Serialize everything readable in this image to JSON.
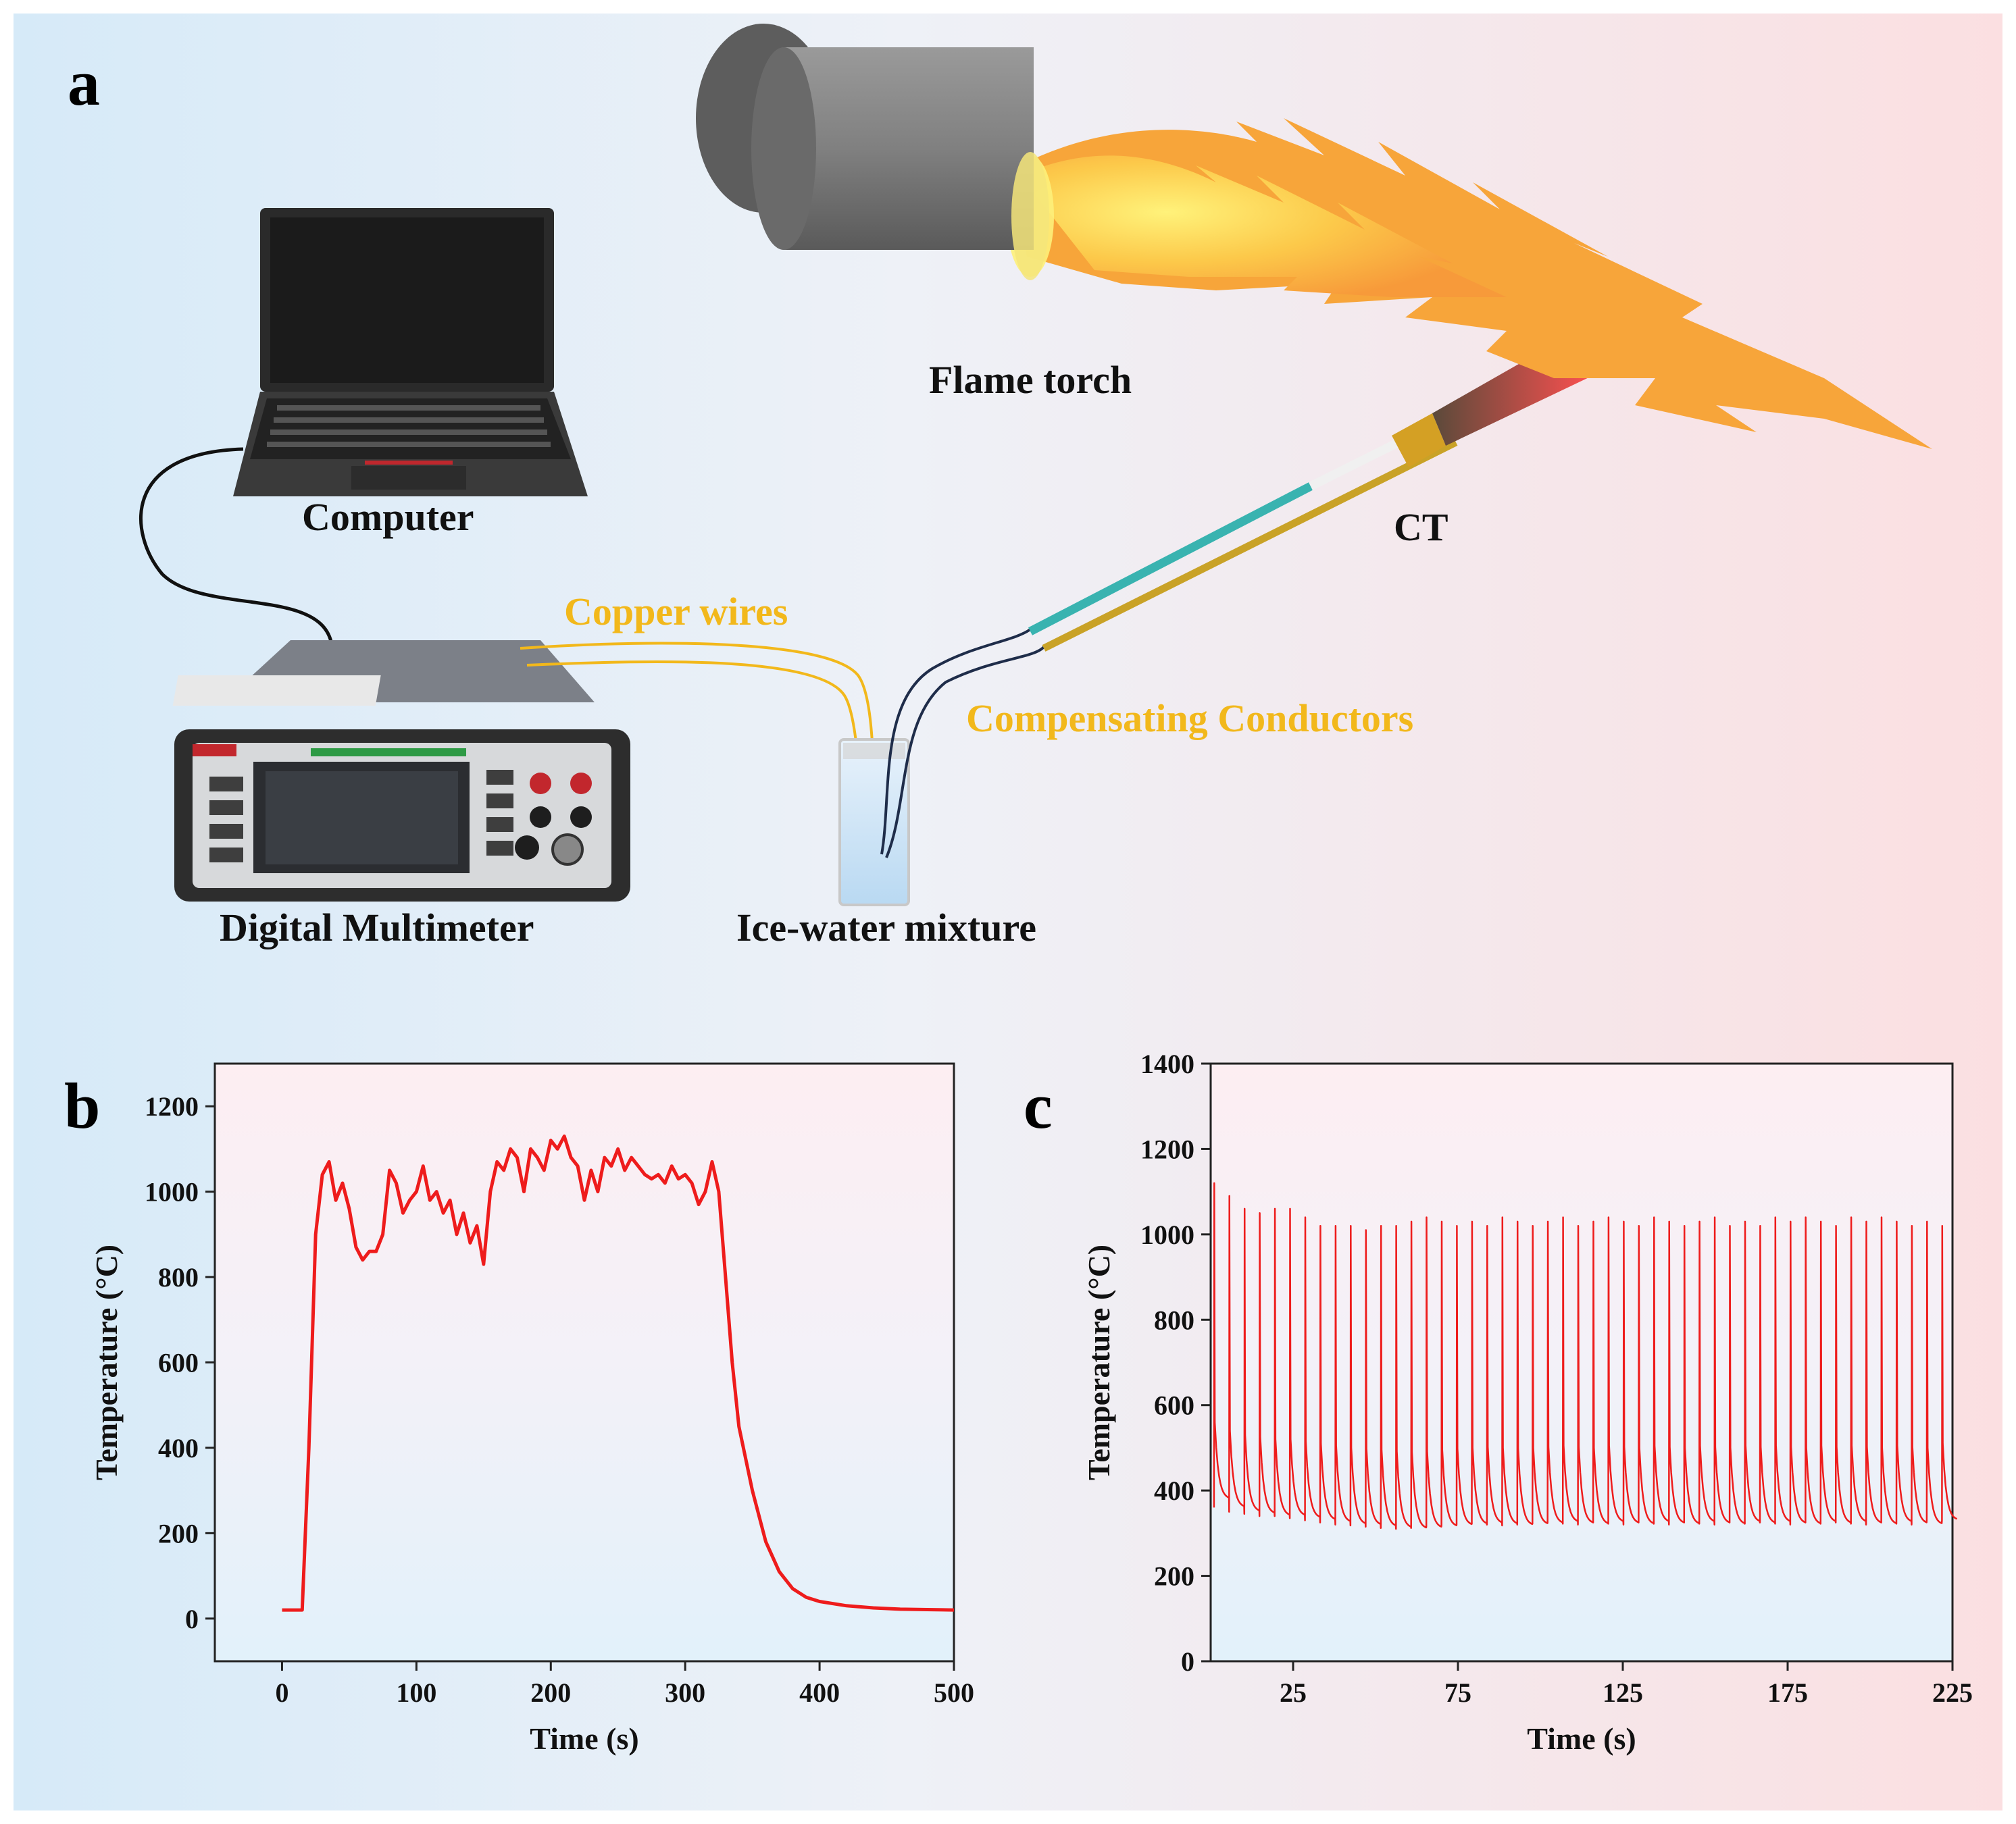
{
  "panels": {
    "a": "a",
    "b": "b",
    "c": "c"
  },
  "diagram": {
    "computer": "Computer",
    "flame_torch": "Flame torch",
    "ct": "CT",
    "copper_wires": "Copper wires",
    "compensating_conductors": "Compensating Conductors",
    "digital_multimeter": "Digital Multimeter",
    "ice_water": "Ice-water mixture"
  },
  "colors": {
    "flame": "#f7a53a",
    "copper_wire": "#f2b81b",
    "chart_line": "#ee1c1c",
    "bg_left": "#dcebf7",
    "bg_right": "#fbe3e5"
  },
  "chart_data": [
    {
      "panel": "b",
      "type": "line",
      "xlabel": "Time (s)",
      "ylabel": "Temperature (°C)",
      "xlim": [
        -50,
        500
      ],
      "ylim": [
        -100,
        1300
      ],
      "xticks": [
        0,
        100,
        200,
        300,
        400,
        500
      ],
      "yticks": [
        0,
        200,
        400,
        600,
        800,
        1000,
        1200
      ],
      "x": [
        0,
        15,
        20,
        25,
        30,
        35,
        40,
        45,
        50,
        55,
        60,
        65,
        70,
        75,
        80,
        85,
        90,
        95,
        100,
        105,
        110,
        115,
        120,
        125,
        130,
        135,
        140,
        145,
        150,
        155,
        160,
        165,
        170,
        175,
        180,
        185,
        190,
        195,
        200,
        205,
        210,
        215,
        220,
        225,
        230,
        235,
        240,
        245,
        250,
        255,
        260,
        265,
        270,
        275,
        280,
        285,
        290,
        295,
        300,
        305,
        310,
        315,
        320,
        325,
        330,
        335,
        340,
        350,
        360,
        370,
        380,
        390,
        400,
        420,
        440,
        460,
        480,
        500
      ],
      "y": [
        20,
        20,
        400,
        900,
        1040,
        1070,
        980,
        1020,
        960,
        870,
        840,
        860,
        860,
        900,
        1050,
        1020,
        950,
        980,
        1000,
        1060,
        980,
        1000,
        950,
        980,
        900,
        950,
        880,
        920,
        830,
        1000,
        1070,
        1050,
        1100,
        1080,
        1000,
        1100,
        1080,
        1050,
        1120,
        1100,
        1130,
        1080,
        1060,
        980,
        1050,
        1000,
        1080,
        1060,
        1100,
        1050,
        1080,
        1060,
        1040,
        1030,
        1040,
        1020,
        1060,
        1030,
        1040,
        1020,
        970,
        1000,
        1070,
        1000,
        800,
        600,
        450,
        300,
        180,
        110,
        70,
        50,
        40,
        30,
        25,
        22,
        21,
        20
      ]
    },
    {
      "panel": "c",
      "type": "line",
      "xlabel": "Time (s)",
      "ylabel": "Temperature (°C)",
      "xlim": [
        0,
        225
      ],
      "ylim": [
        0,
        1400
      ],
      "xticks": [
        25,
        75,
        125,
        175,
        225
      ],
      "yticks": [
        0,
        200,
        400,
        600,
        800,
        1000,
        1200,
        1400
      ],
      "peaks": [
        1120,
        1090,
        1060,
        1050,
        1060,
        1060,
        1040,
        1020,
        1020,
        1020,
        1010,
        1020,
        1020,
        1030,
        1040,
        1030,
        1020,
        1030,
        1020,
        1040,
        1030,
        1020,
        1030,
        1040,
        1020,
        1030,
        1040,
        1030,
        1020,
        1040,
        1030,
        1020,
        1030,
        1040,
        1020,
        1030,
        1020,
        1040,
        1030,
        1040,
        1030,
        1020,
        1040,
        1030,
        1040,
        1030,
        1020,
        1030,
        1020
      ],
      "baseline": [
        380,
        360,
        350,
        345,
        340,
        340,
        335,
        330,
        325,
        320,
        318,
        315,
        312,
        310,
        312,
        315,
        318,
        320,
        322,
        320,
        318,
        320,
        322,
        325,
        322,
        320,
        325,
        322,
        320,
        325,
        322,
        320,
        325,
        322,
        320,
        325,
        322,
        325,
        322,
        320,
        325,
        322,
        325,
        322,
        320,
        325,
        322,
        320,
        330
      ],
      "period_s": 4.6,
      "start_s": 1
    }
  ]
}
